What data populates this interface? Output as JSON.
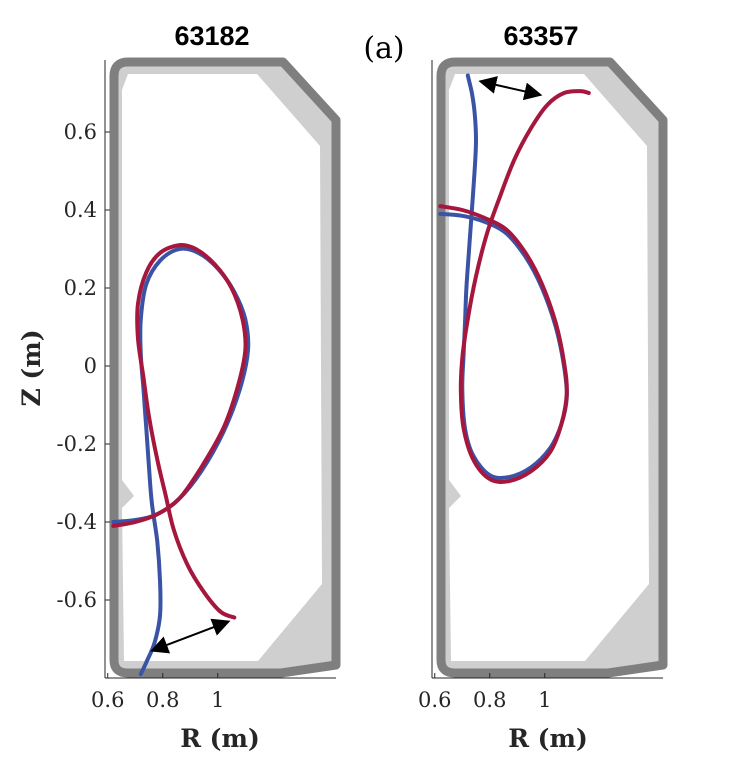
{
  "figure": {
    "panel_tag": "(a)",
    "shared_ylabel": "Z (m)",
    "colors": {
      "blue": "#3a53a4",
      "red": "#a6173d",
      "wall_dark": "#7f7f7f",
      "wall_light": "#cfcfcf",
      "arrow": "#000000"
    }
  },
  "chart_data": [
    {
      "type": "line",
      "title": "63182",
      "xlabel": "R (m)",
      "ylabel": "Z (m)",
      "xlim": [
        0.59,
        1.18
      ],
      "ylim": [
        -0.79,
        0.79
      ],
      "xticks": [
        "0.6",
        "0.8",
        "1"
      ],
      "yticks": [
        "0.6",
        "0.4",
        "0.2",
        "0",
        "-0.2",
        "-0.4",
        "-0.6"
      ],
      "grid": false,
      "legend": "none",
      "series": [
        {
          "color": "blue",
          "points": [
            [
              0.62,
              -0.4
            ],
            [
              0.7,
              -0.395
            ],
            [
              0.78,
              -0.38
            ],
            [
              0.86,
              -0.34
            ],
            [
              0.94,
              -0.27
            ],
            [
              1.02,
              -0.17
            ],
            [
              1.08,
              -0.06
            ],
            [
              1.11,
              0.04
            ],
            [
              1.1,
              0.12
            ],
            [
              1.06,
              0.19
            ],
            [
              1.0,
              0.25
            ],
            [
              0.93,
              0.29
            ],
            [
              0.86,
              0.3
            ],
            [
              0.79,
              0.27
            ],
            [
              0.74,
              0.21
            ],
            [
              0.72,
              0.12
            ],
            [
              0.72,
              0.03
            ],
            [
              0.73,
              -0.06
            ],
            [
              0.74,
              -0.16
            ],
            [
              0.75,
              -0.26
            ],
            [
              0.76,
              -0.35
            ],
            [
              0.78,
              -0.45
            ],
            [
              0.79,
              -0.55
            ],
            [
              0.79,
              -0.64
            ],
            [
              0.77,
              -0.71
            ],
            [
              0.74,
              -0.76
            ],
            [
              0.72,
              -0.79
            ]
          ]
        },
        {
          "color": "red",
          "points": [
            [
              0.62,
              -0.41
            ],
            [
              0.7,
              -0.4
            ],
            [
              0.78,
              -0.38
            ],
            [
              0.86,
              -0.34
            ],
            [
              0.94,
              -0.26
            ],
            [
              1.02,
              -0.16
            ],
            [
              1.07,
              -0.06
            ],
            [
              1.1,
              0.04
            ],
            [
              1.09,
              0.12
            ],
            [
              1.05,
              0.2
            ],
            [
              0.99,
              0.26
            ],
            [
              0.92,
              0.3
            ],
            [
              0.86,
              0.31
            ],
            [
              0.79,
              0.29
            ],
            [
              0.74,
              0.24
            ],
            [
              0.71,
              0.16
            ],
            [
              0.71,
              0.07
            ],
            [
              0.73,
              -0.03
            ],
            [
              0.75,
              -0.13
            ],
            [
              0.78,
              -0.24
            ],
            [
              0.81,
              -0.33
            ],
            [
              0.84,
              -0.42
            ],
            [
              0.89,
              -0.51
            ],
            [
              0.95,
              -0.58
            ],
            [
              1.01,
              -0.63
            ],
            [
              1.06,
              -0.645
            ]
          ]
        }
      ],
      "annotations": [
        {
          "type": "double-arrow",
          "from": [
            0.76,
            -0.73
          ],
          "to": [
            1.04,
            -0.655
          ]
        }
      ]
    },
    {
      "type": "line",
      "title": "63357",
      "xlabel": "R (m)",
      "ylabel": "",
      "xlim": [
        0.59,
        1.18
      ],
      "ylim": [
        -0.79,
        0.79
      ],
      "xticks": [
        "0.6",
        "0.8",
        "1"
      ],
      "yticks": [],
      "grid": false,
      "legend": "none",
      "series": [
        {
          "color": "blue",
          "points": [
            [
              0.62,
              0.39
            ],
            [
              0.7,
              0.385
            ],
            [
              0.78,
              0.37
            ],
            [
              0.86,
              0.34
            ],
            [
              0.93,
              0.28
            ],
            [
              0.99,
              0.2
            ],
            [
              1.04,
              0.1
            ],
            [
              1.07,
              0.0
            ],
            [
              1.08,
              -0.08
            ],
            [
              1.06,
              -0.15
            ],
            [
              1.02,
              -0.21
            ],
            [
              0.95,
              -0.26
            ],
            [
              0.87,
              -0.285
            ],
            [
              0.8,
              -0.28
            ],
            [
              0.74,
              -0.23
            ],
            [
              0.71,
              -0.16
            ],
            [
              0.7,
              -0.06
            ],
            [
              0.705,
              0.03
            ],
            [
              0.71,
              0.11
            ],
            [
              0.715,
              0.2
            ],
            [
              0.725,
              0.3
            ],
            [
              0.735,
              0.4
            ],
            [
              0.745,
              0.5
            ],
            [
              0.75,
              0.58
            ],
            [
              0.745,
              0.65
            ],
            [
              0.735,
              0.7
            ],
            [
              0.72,
              0.745
            ]
          ]
        },
        {
          "color": "red",
          "points": [
            [
              0.62,
              0.41
            ],
            [
              0.7,
              0.4
            ],
            [
              0.78,
              0.38
            ],
            [
              0.86,
              0.35
            ],
            [
              0.93,
              0.29
            ],
            [
              0.99,
              0.21
            ],
            [
              1.04,
              0.11
            ],
            [
              1.07,
              0.01
            ],
            [
              1.08,
              -0.07
            ],
            [
              1.06,
              -0.15
            ],
            [
              1.02,
              -0.22
            ],
            [
              0.95,
              -0.27
            ],
            [
              0.87,
              -0.295
            ],
            [
              0.8,
              -0.29
            ],
            [
              0.74,
              -0.24
            ],
            [
              0.705,
              -0.16
            ],
            [
              0.695,
              -0.07
            ],
            [
              0.7,
              0.02
            ],
            [
              0.72,
              0.12
            ],
            [
              0.75,
              0.23
            ],
            [
              0.79,
              0.34
            ],
            [
              0.84,
              0.44
            ],
            [
              0.89,
              0.53
            ],
            [
              0.95,
              0.61
            ],
            [
              1.01,
              0.67
            ],
            [
              1.07,
              0.7
            ],
            [
              1.13,
              0.705
            ],
            [
              1.16,
              0.7
            ]
          ]
        }
      ],
      "annotations": [
        {
          "type": "double-arrow",
          "from": [
            0.765,
            0.73
          ],
          "to": [
            0.985,
            0.695
          ]
        }
      ]
    }
  ]
}
